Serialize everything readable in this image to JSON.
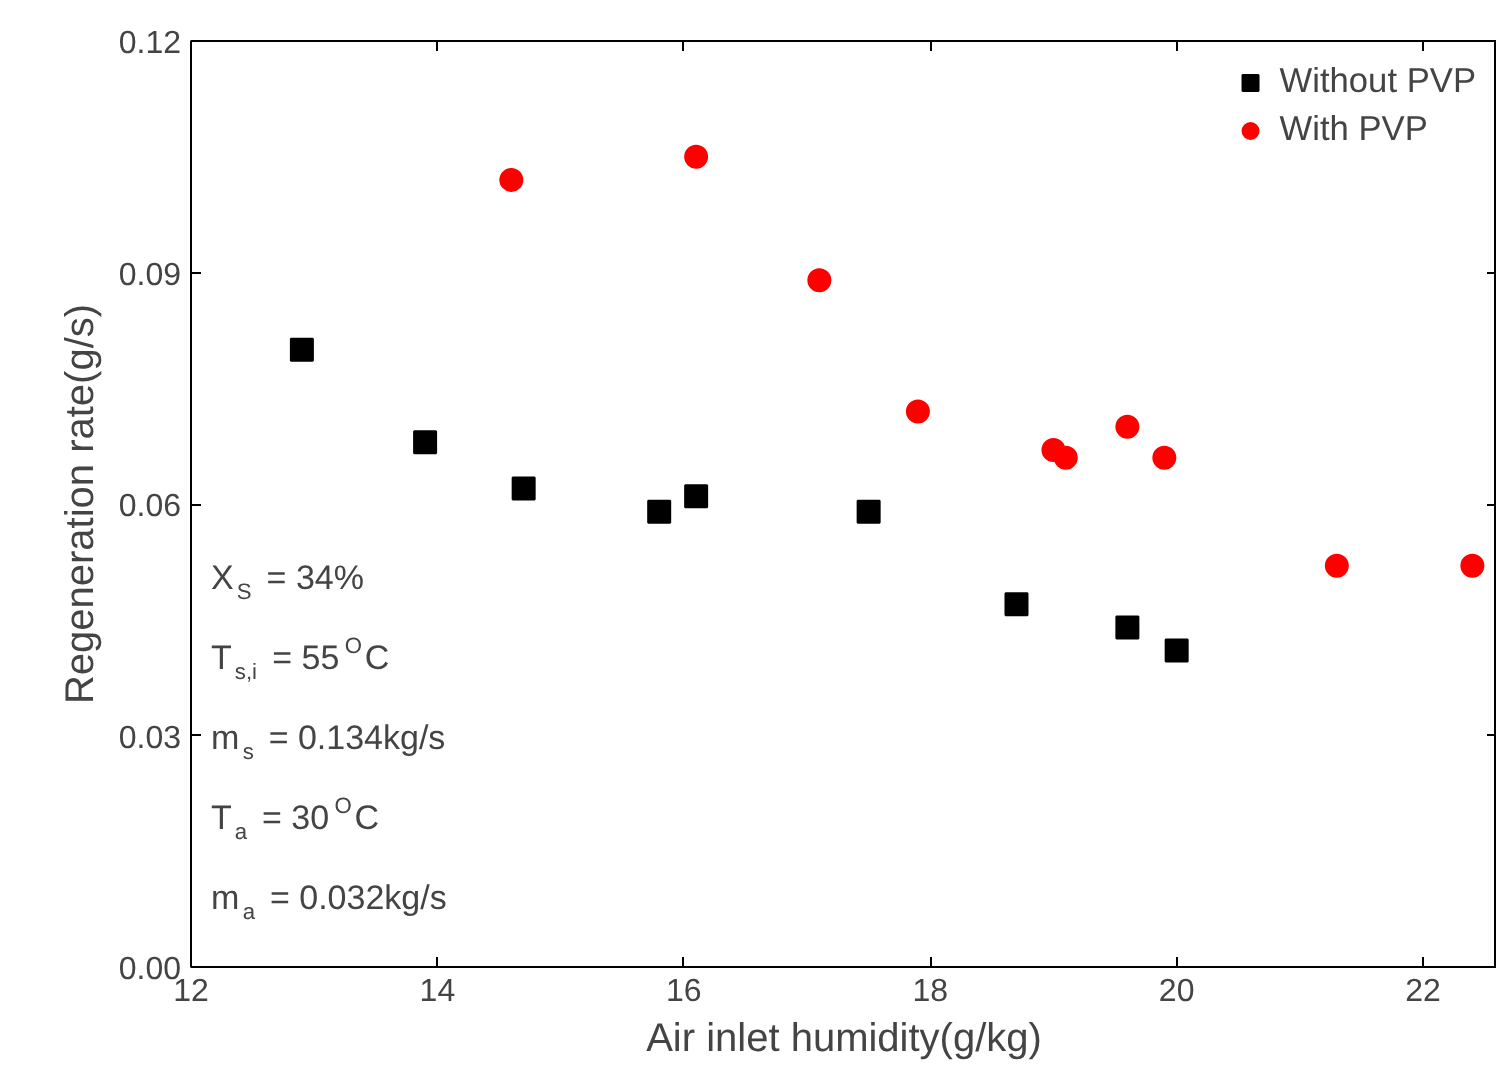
{
  "chart_data": {
    "type": "scatter",
    "xlabel": "Air inlet humidity(g/kg)",
    "ylabel": "Regeneration rate(g/s)",
    "xlim": [
      12,
      22.6
    ],
    "xticks": [
      12,
      14,
      16,
      18,
      20,
      22
    ],
    "ylim": [
      0,
      0.12
    ],
    "yticks": [
      {
        "value": 0,
        "label": "0.00"
      },
      {
        "value": 0.03,
        "label": "0.03"
      },
      {
        "value": 0.06,
        "label": "0.06"
      },
      {
        "value": 0.09,
        "label": "0.09"
      },
      {
        "value": 0.12,
        "label": "0.12"
      }
    ],
    "grid": false,
    "legend": "top right",
    "series": [
      {
        "name": "Without PVP",
        "color": "#000000",
        "marker": "square",
        "x": [
          12.9,
          13.9,
          14.7,
          15.8,
          16.1,
          17.5,
          18.7,
          19.6,
          20.0
        ],
        "values": [
          0.08,
          0.068,
          0.062,
          0.059,
          0.061,
          0.059,
          0.047,
          0.044,
          0.041
        ]
      },
      {
        "name": "With PVP",
        "color": "#ff0000",
        "marker": "circle",
        "x": [
          14.6,
          16.1,
          17.1,
          17.9,
          19.0,
          19.1,
          19.6,
          19.9,
          21.3,
          22.4
        ],
        "values": [
          0.102,
          0.105,
          0.089,
          0.072,
          0.067,
          0.066,
          0.07,
          0.066,
          0.052,
          0.052
        ]
      }
    ],
    "annotations": [
      "X$_{S}$ = 34%",
      "T$_{s,i}$ = 55$^{O}$C",
      "m$_{s}$ = 0.134kg/s",
      "T$_{a}$ = 30$^{O}$C",
      "m$_{a}$ = 0.032kg/s"
    ]
  }
}
